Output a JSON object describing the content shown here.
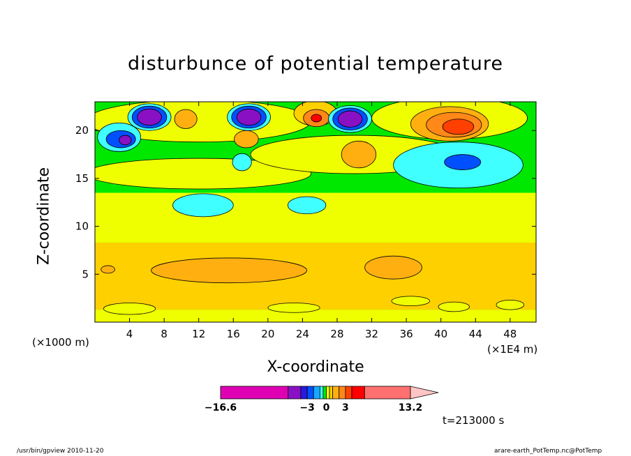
{
  "chart_data": {
    "type": "heatmap",
    "title": "disturbunce of potential temperature",
    "xlabel": "X-coordinate",
    "ylabel": "Z-coordinate",
    "x_unit_label": "(×1000 m)",
    "x_scale_label": "(×1E4 m)",
    "xlim": [
      0,
      51
    ],
    "ylim": [
      0,
      23
    ],
    "xticks": [
      4,
      8,
      12,
      16,
      20,
      24,
      28,
      32,
      36,
      40,
      44,
      48
    ],
    "yticks": [
      5,
      10,
      15,
      20
    ],
    "grid": false,
    "time_label": "t=213000 s",
    "colorbar": {
      "tick_labels": [
        {
          "label": "−16.6",
          "value": -16.6
        },
        {
          "label": "−3",
          "value": -3
        },
        {
          "label": "0",
          "value": 0
        },
        {
          "label": "3",
          "value": 3
        },
        {
          "label": "13.2",
          "value": 13.2
        }
      ],
      "levels": [
        -16.6,
        -6,
        -4,
        -3,
        -2,
        -1,
        -0.5,
        0,
        0.5,
        1,
        2,
        3,
        4,
        6,
        13.2
      ],
      "colors": [
        "#e000b4",
        "#8a10c4",
        "#2a18e0",
        "#0050ff",
        "#18a8ff",
        "#40ffff",
        "#00e800",
        "#f0ff00",
        "#ffd000",
        "#ffb010",
        "#ff8818",
        "#ff4000",
        "#ff0000",
        "#ff7070"
      ],
      "extend_color": "#ffc4c4"
    },
    "background_color": "#00e800",
    "regions": [
      {
        "shape": "rect",
        "x": [
          0,
          51
        ],
        "y": [
          8.3,
          13.5
        ],
        "level": 7
      },
      {
        "shape": "rect",
        "x": [
          0,
          51
        ],
        "y": [
          0,
          1.3
        ],
        "level": 7
      },
      {
        "shape": "ellipse",
        "cx": 12,
        "cy": 15.5,
        "rx": 13,
        "ry": 1.6,
        "level": 7
      },
      {
        "shape": "ellipse",
        "cx": 30,
        "cy": 17.5,
        "rx": 12,
        "ry": 2.0,
        "level": 7
      },
      {
        "shape": "ellipse",
        "cx": 41,
        "cy": 21.3,
        "rx": 9,
        "ry": 2.2,
        "level": 7
      },
      {
        "shape": "ellipse",
        "cx": 12,
        "cy": 21,
        "rx": 13,
        "ry": 2.2,
        "level": 7
      },
      {
        "shape": "ellipse",
        "cx": 25.5,
        "cy": 21.8,
        "rx": 2.5,
        "ry": 1.3,
        "level": 8
      },
      {
        "shape": "ellipse",
        "cx": 25.6,
        "cy": 21.3,
        "rx": 1.5,
        "ry": 0.9,
        "level": 10
      },
      {
        "shape": "ellipse",
        "cx": 25.6,
        "cy": 21.3,
        "rx": 0.6,
        "ry": 0.4,
        "level": 12
      },
      {
        "shape": "ellipse",
        "cx": 41,
        "cy": 20.7,
        "rx": 4.5,
        "ry": 1.8,
        "level": 9
      },
      {
        "shape": "ellipse",
        "cx": 41.5,
        "cy": 20.6,
        "rx": 3.2,
        "ry": 1.3,
        "level": 10
      },
      {
        "shape": "ellipse",
        "cx": 42,
        "cy": 20.4,
        "rx": 1.8,
        "ry": 0.8,
        "level": 11
      },
      {
        "shape": "ellipse",
        "cx": 17.5,
        "cy": 19.1,
        "rx": 1.4,
        "ry": 0.9,
        "level": 9
      },
      {
        "shape": "ellipse",
        "cx": 10.5,
        "cy": 21.2,
        "rx": 1.3,
        "ry": 1.0,
        "level": 9
      },
      {
        "shape": "ellipse",
        "cx": 30.5,
        "cy": 17.5,
        "rx": 2.0,
        "ry": 1.4,
        "level": 9
      },
      {
        "shape": "ellipse",
        "cx": 42,
        "cy": 16.4,
        "rx": 7.5,
        "ry": 2.4,
        "level": 5
      },
      {
        "shape": "ellipse",
        "cx": 42.5,
        "cy": 16.7,
        "rx": 2.1,
        "ry": 0.8,
        "level": 3
      },
      {
        "shape": "ellipse",
        "cx": 12.5,
        "cy": 12.2,
        "rx": 3.5,
        "ry": 1.2,
        "level": 5
      },
      {
        "shape": "ellipse",
        "cx": 24.5,
        "cy": 12.2,
        "rx": 2.2,
        "ry": 0.9,
        "level": 5
      },
      {
        "shape": "ellipse",
        "cx": 17,
        "cy": 16.7,
        "rx": 1.1,
        "ry": 0.9,
        "level": 5
      },
      {
        "shape": "ellipse",
        "cx": 6.3,
        "cy": 21.4,
        "rx": 2.5,
        "ry": 1.4,
        "level": 5
      },
      {
        "shape": "ellipse",
        "cx": 6.3,
        "cy": 21.4,
        "rx": 2.0,
        "ry": 1.15,
        "level": 3
      },
      {
        "shape": "ellipse",
        "cx": 6.3,
        "cy": 21.4,
        "rx": 1.4,
        "ry": 0.85,
        "level": 1
      },
      {
        "shape": "ellipse",
        "cx": 17.8,
        "cy": 21.4,
        "rx": 2.5,
        "ry": 1.4,
        "level": 5
      },
      {
        "shape": "ellipse",
        "cx": 17.8,
        "cy": 21.4,
        "rx": 2.0,
        "ry": 1.15,
        "level": 3
      },
      {
        "shape": "ellipse",
        "cx": 17.8,
        "cy": 21.4,
        "rx": 1.4,
        "ry": 0.85,
        "level": 1
      },
      {
        "shape": "ellipse",
        "cx": 29.5,
        "cy": 21.2,
        "rx": 2.5,
        "ry": 1.4,
        "level": 5
      },
      {
        "shape": "ellipse",
        "cx": 29.5,
        "cy": 21.2,
        "rx": 2.0,
        "ry": 1.15,
        "level": 3
      },
      {
        "shape": "ellipse",
        "cx": 29.5,
        "cy": 21.2,
        "rx": 1.4,
        "ry": 0.85,
        "level": 1
      },
      {
        "shape": "ellipse",
        "cx": 2.8,
        "cy": 19.3,
        "rx": 2.5,
        "ry": 1.5,
        "level": 5
      },
      {
        "shape": "ellipse",
        "cx": 3,
        "cy": 19.1,
        "rx": 1.7,
        "ry": 0.9,
        "level": 3
      },
      {
        "shape": "ellipse",
        "cx": 3.5,
        "cy": 19.0,
        "rx": 0.7,
        "ry": 0.5,
        "level": 1
      },
      {
        "shape": "rect",
        "x": [
          0,
          51
        ],
        "y": [
          1.3,
          8.3
        ],
        "level": 8
      },
      {
        "shape": "ellipse",
        "cx": 15.5,
        "cy": 5.4,
        "rx": 9,
        "ry": 1.3,
        "level": 9
      },
      {
        "shape": "ellipse",
        "cx": 34.5,
        "cy": 5.7,
        "rx": 3.3,
        "ry": 1.2,
        "level": 9
      },
      {
        "shape": "ellipse",
        "cx": 1.5,
        "cy": 5.5,
        "rx": 0.8,
        "ry": 0.4,
        "level": 9
      },
      {
        "shape": "ellipse",
        "cx": 36.5,
        "cy": 2.2,
        "rx": 2.2,
        "ry": 0.5,
        "level": 7
      },
      {
        "shape": "ellipse",
        "cx": 41.5,
        "cy": 1.6,
        "rx": 1.8,
        "ry": 0.5,
        "level": 7
      },
      {
        "shape": "ellipse",
        "cx": 48,
        "cy": 1.8,
        "rx": 1.6,
        "ry": 0.5,
        "level": 7
      },
      {
        "shape": "ellipse",
        "cx": 4,
        "cy": 1.4,
        "rx": 3.0,
        "ry": 0.6,
        "level": 7
      },
      {
        "shape": "ellipse",
        "cx": 23,
        "cy": 1.5,
        "rx": 3.0,
        "ry": 0.5,
        "level": 7
      }
    ]
  },
  "footer": {
    "left": "/usr/bin/gpview   2010-11-20",
    "right": "arare-earth_PotTemp.nc@PotTemp"
  }
}
